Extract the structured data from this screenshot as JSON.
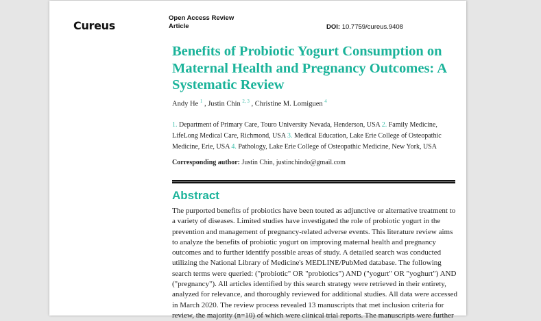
{
  "header": {
    "logo": "Cureus",
    "article_type_line1": "Open Access Review",
    "article_type_line2": "Article",
    "doi_label": "DOI:",
    "doi_value": "10.7759/cureus.9408"
  },
  "article": {
    "title": "Benefits of Probiotic Yogurt Consumption on Maternal Health and Pregnancy Outcomes: A Systematic Review",
    "authors": [
      {
        "name": "Andy He",
        "sup": "1"
      },
      {
        "name": "Justin Chin",
        "sup": "2, 3"
      },
      {
        "name": "Christine M. Lomiguen",
        "sup": "4"
      }
    ],
    "affiliations": [
      {
        "num": "1.",
        "text": "Department of Primary Care, Touro University Nevada, Henderson, USA"
      },
      {
        "num": "2.",
        "text": "Family Medicine, LifeLong Medical Care, Richmond, USA"
      },
      {
        "num": "3.",
        "text": "Medical Education, Lake Erie College of Osteopathic Medicine, Erie, USA"
      },
      {
        "num": "4.",
        "text": "Pathology, Lake Erie College of Osteopathic Medicine, New York, USA"
      }
    ],
    "corresponding_label": "Corresponding author:",
    "corresponding_value": "Justin Chin, justinchindo@gmail.com",
    "abstract_heading": "Abstract",
    "abstract_text": "The purported benefits of probiotics have been touted as adjunctive or alternative treatment to a variety of diseases. Limited studies have investigated the role of probiotic yogurt in the prevention and management of pregnancy-related adverse events. This literature review aims to analyze the benefits of probiotic yogurt on improving maternal health and pregnancy outcomes and to further identify possible areas of study. A detailed search was conducted utilizing the National Library of Medicine's MEDLINE/PubMed database. The following search terms were queried: (\"probiotic\" OR \"probiotics\") AND (\"yogurt\" OR \"yoghurt\") AND (\"pregnancy\"). All articles identified by this search strategy were retrieved in their entirety, analyzed for relevance, and thoroughly reviewed for additional studies. All data were accessed in March 2020. The review process revealed 13 manuscripts that met inclusion criteria for review, the majority (n=10) of which were clinical trial reports. The manuscripts were further"
  },
  "colors": {
    "accent": "#1bb39a",
    "background": "#e6e6e6",
    "page": "#ffffff"
  }
}
